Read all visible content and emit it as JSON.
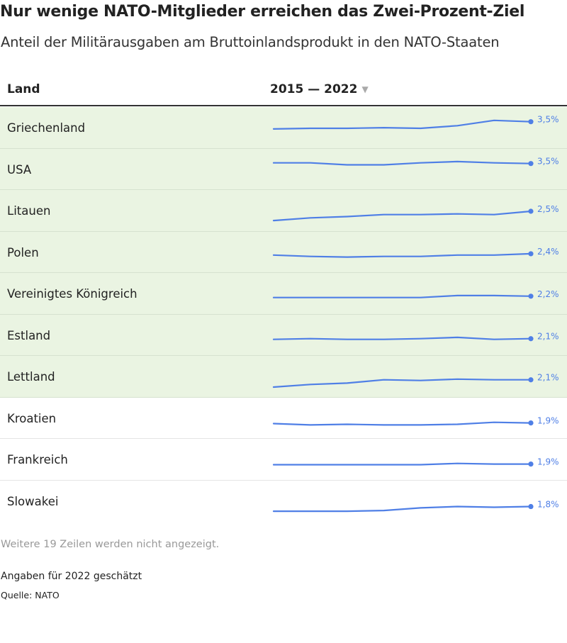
{
  "title": "Nur wenige NATO-Mitglieder erreichen das Zwei-Prozent-Ziel",
  "subtitle": "Anteil der Militärausgaben am Bruttoinlandsprodukt in den NATO-Staaten",
  "header": {
    "land": "Land",
    "years": "2015 — 2022",
    "sort_icon": "sort-down-icon"
  },
  "colors": {
    "line": "#4f7fe6",
    "highlight": "#eaf4e2"
  },
  "chart_data": {
    "type": "line",
    "x": [
      2015,
      2016,
      2017,
      2018,
      2019,
      2020,
      2021,
      2022
    ],
    "ylim": [
      1.0,
      4.0
    ],
    "highlight_threshold": 2.0,
    "rows": [
      {
        "country": "Griechenland",
        "label": "3,5%",
        "values": [
          2.4,
          2.5,
          2.5,
          2.6,
          2.5,
          2.9,
          3.7,
          3.5
        ]
      },
      {
        "country": "USA",
        "label": "3,5%",
        "values": [
          3.6,
          3.6,
          3.3,
          3.3,
          3.6,
          3.8,
          3.6,
          3.5
        ]
      },
      {
        "country": "Litauen",
        "label": "2,5%",
        "values": [
          1.1,
          1.5,
          1.7,
          2.0,
          2.0,
          2.1,
          2.0,
          2.5
        ]
      },
      {
        "country": "Polen",
        "label": "2,4%",
        "values": [
          2.2,
          2.0,
          1.9,
          2.0,
          2.0,
          2.2,
          2.2,
          2.4
        ]
      },
      {
        "country": "Vereinigtes Königreich",
        "label": "2,2%",
        "values": [
          2.0,
          2.0,
          2.0,
          2.0,
          2.0,
          2.3,
          2.3,
          2.2
        ]
      },
      {
        "country": "Estland",
        "label": "2,1%",
        "values": [
          2.0,
          2.1,
          2.0,
          2.0,
          2.1,
          2.3,
          2.0,
          2.1
        ]
      },
      {
        "country": "Lettland",
        "label": "2,1%",
        "values": [
          1.0,
          1.4,
          1.6,
          2.1,
          2.0,
          2.2,
          2.1,
          2.1
        ]
      },
      {
        "country": "Kroatien",
        "label": "1,9%",
        "values": [
          1.8,
          1.6,
          1.7,
          1.6,
          1.6,
          1.7,
          2.0,
          1.9
        ]
      },
      {
        "country": "Frankreich",
        "label": "1,9%",
        "values": [
          1.8,
          1.8,
          1.8,
          1.8,
          1.8,
          2.0,
          1.9,
          1.9
        ]
      },
      {
        "country": "Slowakei",
        "label": "1,8%",
        "values": [
          1.1,
          1.1,
          1.1,
          1.2,
          1.6,
          1.8,
          1.7,
          1.8
        ]
      }
    ]
  },
  "footer": {
    "more_rows": "Weitere 19 Zeilen werden nicht angezeigt.",
    "note": "Angaben für 2022 geschätzt",
    "source": "Quelle: NATO"
  }
}
